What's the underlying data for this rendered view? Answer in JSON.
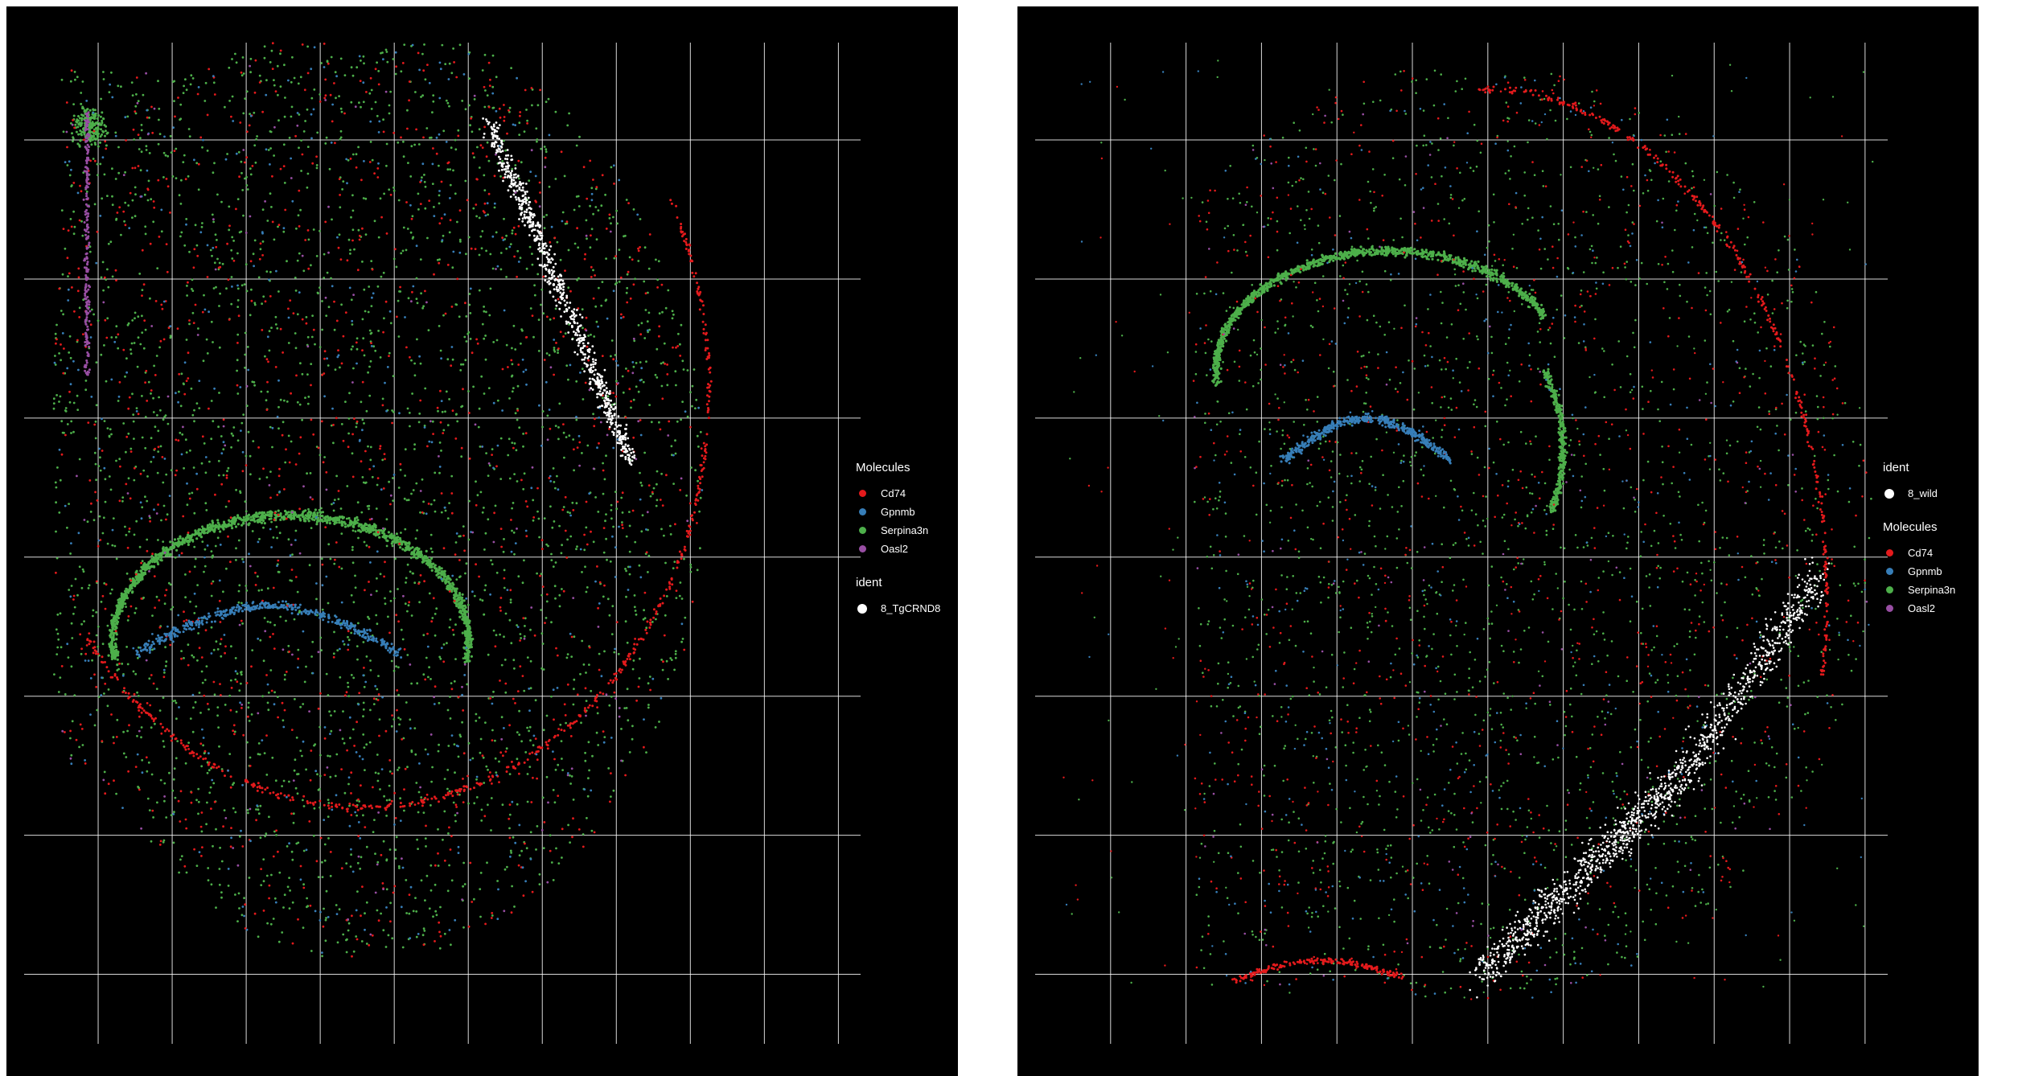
{
  "chart_data": [
    {
      "type": "scatter",
      "title": "",
      "xlabel": "",
      "ylabel": "",
      "grid": true,
      "background": "#000000",
      "grid_color": "#ffffff",
      "xlim": [
        0,
        11.3
      ],
      "ylim": [
        0,
        7.2
      ],
      "x_gridlines": [
        1,
        2,
        3,
        4,
        5,
        6,
        7,
        8,
        9,
        10,
        11
      ],
      "y_gridlines": [
        0.5,
        1.5,
        2.5,
        3.5,
        4.5,
        5.5,
        6.5
      ],
      "legend_placement": "right",
      "legends": [
        {
          "title": "Molecules",
          "items": [
            {
              "label": "Cd74",
              "color": "#e41a1c"
            },
            {
              "label": "Gpnmb",
              "color": "#377eb8"
            },
            {
              "label": "Serpina3n",
              "color": "#4daf4a"
            },
            {
              "label": "Oasl2",
              "color": "#984ea3"
            }
          ]
        },
        {
          "title": "ident",
          "items": [
            {
              "label": "8_TgCRND8",
              "color": "#ffffff"
            }
          ]
        }
      ],
      "series": [
        {
          "name": "Serpina3n",
          "color": "#4daf4a",
          "density": "very high",
          "region": "whole section, dense hippocampal arc"
        },
        {
          "name": "Cd74",
          "color": "#e41a1c",
          "density": "high",
          "region": "scattered, concentrated along outer boundary"
        },
        {
          "name": "Gpnmb",
          "color": "#377eb8",
          "density": "medium",
          "region": "hippocampal inner band"
        },
        {
          "name": "Oasl2",
          "color": "#984ea3",
          "density": "low",
          "region": "scattered, top-left ventricle structure"
        },
        {
          "name": "8_TgCRND8",
          "color": "#ffffff",
          "density": "medium",
          "region": "upper-right diagonal band"
        }
      ]
    },
    {
      "type": "scatter",
      "title": "",
      "xlabel": "",
      "ylabel": "",
      "grid": true,
      "background": "#000000",
      "grid_color": "#ffffff",
      "xlim": [
        0,
        11.3
      ],
      "ylim": [
        0,
        7.2
      ],
      "x_gridlines": [
        1,
        2,
        3,
        4,
        5,
        6,
        7,
        8,
        9,
        10,
        11
      ],
      "y_gridlines": [
        0.5,
        1.5,
        2.5,
        3.5,
        4.5,
        5.5,
        6.5
      ],
      "legend_placement": "right",
      "legends": [
        {
          "title": "ident",
          "items": [
            {
              "label": "8_wild",
              "color": "#ffffff"
            }
          ]
        },
        {
          "title": "Molecules",
          "items": [
            {
              "label": "Cd74",
              "color": "#e41a1c"
            },
            {
              "label": "Gpnmb",
              "color": "#377eb8"
            },
            {
              "label": "Serpina3n",
              "color": "#4daf4a"
            },
            {
              "label": "Oasl2",
              "color": "#984ea3"
            }
          ]
        }
      ],
      "series": [
        {
          "name": "Serpina3n",
          "color": "#4daf4a",
          "density": "high",
          "region": "hippocampal arc, lower-left"
        },
        {
          "name": "Cd74",
          "color": "#e41a1c",
          "density": "medium",
          "region": "outer boundary arc"
        },
        {
          "name": "Gpnmb",
          "color": "#377eb8",
          "density": "medium",
          "region": "under hippocampal arc"
        },
        {
          "name": "Oasl2",
          "color": "#984ea3",
          "density": "low",
          "region": "scattered"
        },
        {
          "name": "8_wild",
          "color": "#ffffff",
          "density": "medium",
          "region": "lower-right band"
        }
      ]
    }
  ]
}
